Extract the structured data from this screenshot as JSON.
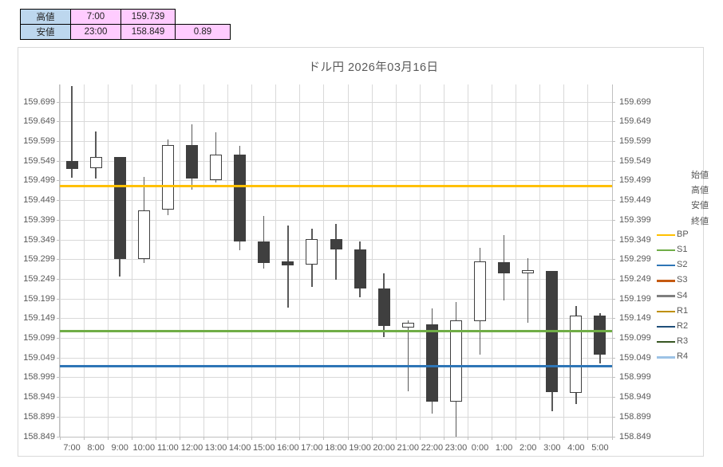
{
  "summary_table": {
    "rows": [
      {
        "cells": [
          "高値",
          "7:00",
          "159.739"
        ]
      },
      {
        "cells": [
          "安値",
          "23:00",
          "158.849",
          "0.89"
        ]
      }
    ],
    "header_bg": "#BDD7EE",
    "value_bg": "#FFCCFF"
  },
  "chart_data": {
    "type": "candlestick",
    "title": "ドル円  2026年03月16日",
    "ylabel": "",
    "xlabel": "",
    "y_axis": {
      "tick_labels": [
        "159.699",
        "159.649",
        "159.599",
        "159.549",
        "159.499",
        "159.449",
        "159.399",
        "159.349",
        "159.299",
        "159.249",
        "159.199",
        "159.149",
        "159.099",
        "159.049",
        "158.999",
        "158.949",
        "158.899",
        "158.849"
      ],
      "top_value": 159.744,
      "bottom_value": 158.849,
      "sides": "both"
    },
    "categories": [
      "7:00",
      "8:00",
      "9:00",
      "10:00",
      "11:00",
      "12:00",
      "13:00",
      "14:00",
      "15:00",
      "16:00",
      "17:00",
      "18:00",
      "19:00",
      "20:00",
      "21:00",
      "22:00",
      "23:00",
      "0:00",
      "1:00",
      "2:00",
      "3:00",
      "4:00",
      "5:00"
    ],
    "candles": [
      {
        "time": "7:00",
        "open": 159.55,
        "high": 159.739,
        "low": 159.508,
        "close": 159.529
      },
      {
        "time": "8:00",
        "open": 159.531,
        "high": 159.624,
        "low": 159.506,
        "close": 159.56
      },
      {
        "time": "9:00",
        "open": 159.56,
        "high": 159.56,
        "low": 159.255,
        "close": 159.301
      },
      {
        "time": "10:00",
        "open": 159.3,
        "high": 159.509,
        "low": 159.291,
        "close": 159.424
      },
      {
        "time": "11:00",
        "open": 159.426,
        "high": 159.604,
        "low": 159.412,
        "close": 159.591
      },
      {
        "time": "12:00",
        "open": 159.591,
        "high": 159.643,
        "low": 159.476,
        "close": 159.505
      },
      {
        "time": "13:00",
        "open": 159.5,
        "high": 159.622,
        "low": 159.495,
        "close": 159.565
      },
      {
        "time": "14:00",
        "open": 159.565,
        "high": 159.588,
        "low": 159.322,
        "close": 159.345
      },
      {
        "time": "15:00",
        "open": 159.345,
        "high": 159.409,
        "low": 159.276,
        "close": 159.291
      },
      {
        "time": "16:00",
        "open": 159.294,
        "high": 159.386,
        "low": 159.177,
        "close": 159.285
      },
      {
        "time": "17:00",
        "open": 159.286,
        "high": 159.378,
        "low": 159.229,
        "close": 159.351
      },
      {
        "time": "18:00",
        "open": 159.351,
        "high": 159.39,
        "low": 159.248,
        "close": 159.325
      },
      {
        "time": "19:00",
        "open": 159.325,
        "high": 159.346,
        "low": 159.204,
        "close": 159.226
      },
      {
        "time": "20:00",
        "open": 159.226,
        "high": 159.265,
        "low": 159.103,
        "close": 159.13
      },
      {
        "time": "21:00",
        "open": 159.127,
        "high": 159.145,
        "low": 158.965,
        "close": 159.139
      },
      {
        "time": "22:00",
        "open": 159.135,
        "high": 159.174,
        "low": 158.908,
        "close": 158.938
      },
      {
        "time": "23:00",
        "open": 158.939,
        "high": 159.192,
        "low": 158.849,
        "close": 159.145
      },
      {
        "time": "0:00",
        "open": 159.143,
        "high": 159.328,
        "low": 159.057,
        "close": 159.295
      },
      {
        "time": "1:00",
        "open": 159.293,
        "high": 159.361,
        "low": 159.196,
        "close": 159.265
      },
      {
        "time": "2:00",
        "open": 159.265,
        "high": 159.302,
        "low": 159.138,
        "close": 159.272
      },
      {
        "time": "3:00",
        "open": 159.271,
        "high": 159.271,
        "low": 158.913,
        "close": 158.963
      },
      {
        "time": "4:00",
        "open": 158.961,
        "high": 159.182,
        "low": 158.932,
        "close": 159.157
      },
      {
        "time": "5:00",
        "open": 159.157,
        "high": 159.162,
        "low": 159.036,
        "close": 159.058
      }
    ],
    "pivot_lines": [
      {
        "name": "BP",
        "value": 159.486,
        "color": "#FFC000"
      },
      {
        "name": "S1",
        "value": 159.117,
        "color": "#70AD47"
      },
      {
        "name": "S2",
        "value": 159.028,
        "color": "#2E75B6"
      }
    ],
    "legend": [
      {
        "label": "始値",
        "color": null
      },
      {
        "label": "高値",
        "color": null
      },
      {
        "label": "安値",
        "color": null
      },
      {
        "label": "終値",
        "color": null
      },
      {
        "label": "BP",
        "color": "#FFC000"
      },
      {
        "label": "S1",
        "color": "#70AD47"
      },
      {
        "label": "S2",
        "color": "#2E75B6"
      },
      {
        "label": "S3",
        "color": "#C55A11"
      },
      {
        "label": "S4",
        "color": "#7F7F7F"
      },
      {
        "label": "R1",
        "color": "#BF8F00"
      },
      {
        "label": "R2",
        "color": "#1F4E79"
      },
      {
        "label": "R3",
        "color": "#375623"
      },
      {
        "label": "R4",
        "color": "#9DC3E6"
      }
    ],
    "legend_position": "right",
    "grid": true,
    "colors": {
      "down_fill": "#3F3F3F",
      "up_fill": "#FFFFFF",
      "body_border": "#3F3F3F",
      "wick": "#595959",
      "gridline": "#D9D9D9",
      "axis_line": "#BFBFBF",
      "label": "#595959"
    }
  }
}
